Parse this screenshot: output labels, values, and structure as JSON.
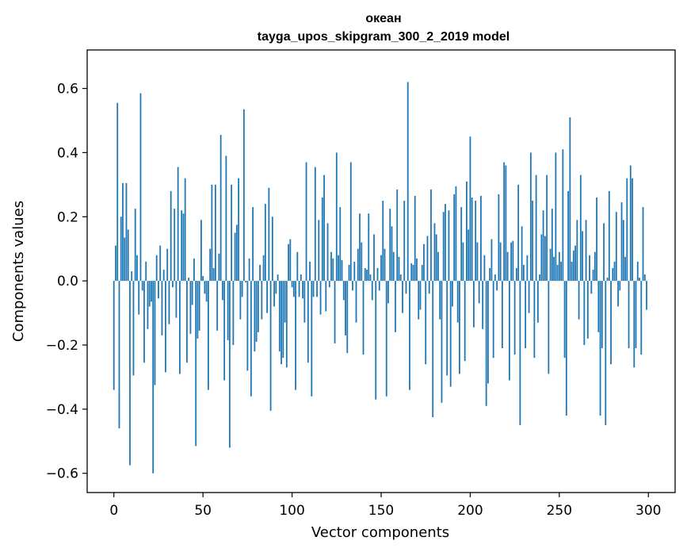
{
  "chart_data": {
    "type": "bar",
    "title": "океан",
    "subtitle": "tayga_upos_skipgram_300_2_2019 model",
    "xlabel": "Vector components",
    "ylabel": "Components values",
    "xlim": [
      -15,
      315
    ],
    "ylim": [
      -0.66,
      0.72
    ],
    "xticks": [
      0,
      50,
      100,
      150,
      200,
      250,
      300
    ],
    "xtick_labels": [
      "0",
      "50",
      "100",
      "150",
      "200",
      "250",
      "300"
    ],
    "yticks": [
      -0.6,
      -0.4,
      -0.2,
      0.0,
      0.2,
      0.4,
      0.6
    ],
    "ytick_labels": [
      "−0.6",
      "−0.4",
      "−0.2",
      "0.0",
      "0.2",
      "0.4",
      "0.6"
    ],
    "grid": false,
    "bar_color": "#1f77b4",
    "x": [
      0,
      1,
      2,
      3,
      4,
      5,
      6,
      7,
      8,
      9,
      10,
      11,
      12,
      13,
      14,
      15,
      16,
      17,
      18,
      19,
      20,
      21,
      22,
      23,
      24,
      25,
      26,
      27,
      28,
      29,
      30,
      31,
      32,
      33,
      34,
      35,
      36,
      37,
      38,
      39,
      40,
      41,
      42,
      43,
      44,
      45,
      46,
      47,
      48,
      49,
      50,
      51,
      52,
      53,
      54,
      55,
      56,
      57,
      58,
      59,
      60,
      61,
      62,
      63,
      64,
      65,
      66,
      67,
      68,
      69,
      70,
      71,
      72,
      73,
      74,
      75,
      76,
      77,
      78,
      79,
      80,
      81,
      82,
      83,
      84,
      85,
      86,
      87,
      88,
      89,
      90,
      91,
      92,
      93,
      94,
      95,
      96,
      97,
      98,
      99,
      100,
      101,
      102,
      103,
      104,
      105,
      106,
      107,
      108,
      109,
      110,
      111,
      112,
      113,
      114,
      115,
      116,
      117,
      118,
      119,
      120,
      121,
      122,
      123,
      124,
      125,
      126,
      127,
      128,
      129,
      130,
      131,
      132,
      133,
      134,
      135,
      136,
      137,
      138,
      139,
      140,
      141,
      142,
      143,
      144,
      145,
      146,
      147,
      148,
      149,
      150,
      151,
      152,
      153,
      154,
      155,
      156,
      157,
      158,
      159,
      160,
      161,
      162,
      163,
      164,
      165,
      166,
      167,
      168,
      169,
      170,
      171,
      172,
      173,
      174,
      175,
      176,
      177,
      178,
      179,
      180,
      181,
      182,
      183,
      184,
      185,
      186,
      187,
      188,
      189,
      190,
      191,
      192,
      193,
      194,
      195,
      196,
      197,
      198,
      199,
      200,
      201,
      202,
      203,
      204,
      205,
      206,
      207,
      208,
      209,
      210,
      211,
      212,
      213,
      214,
      215,
      216,
      217,
      218,
      219,
      220,
      221,
      222,
      223,
      224,
      225,
      226,
      227,
      228,
      229,
      230,
      231,
      232,
      233,
      234,
      235,
      236,
      237,
      238,
      239,
      240,
      241,
      242,
      243,
      244,
      245,
      246,
      247,
      248,
      249,
      250,
      251,
      252,
      253,
      254,
      255,
      256,
      257,
      258,
      259,
      260,
      261,
      262,
      263,
      264,
      265,
      266,
      267,
      268,
      269,
      270,
      271,
      272,
      273,
      274,
      275,
      276,
      277,
      278,
      279,
      280,
      281,
      282,
      283,
      284,
      285,
      286,
      287,
      288,
      289,
      290,
      291,
      292,
      293,
      294,
      295,
      296,
      297,
      298,
      299
    ],
    "values": [
      -0.34,
      0.11,
      0.555,
      -0.46,
      0.2,
      0.305,
      0.135,
      0.305,
      0.16,
      -0.575,
      0.03,
      -0.295,
      0.225,
      0.08,
      -0.105,
      0.585,
      -0.03,
      -0.255,
      0.06,
      -0.15,
      -0.08,
      -0.065,
      -0.6,
      -0.325,
      0.08,
      -0.055,
      0.11,
      -0.17,
      0.035,
      -0.285,
      0.1,
      -0.135,
      0.28,
      -0.02,
      0.225,
      -0.115,
      0.355,
      -0.29,
      0.22,
      0.21,
      0.32,
      -0.255,
      0.01,
      -0.165,
      -0.075,
      0.07,
      -0.515,
      -0.18,
      -0.155,
      0.19,
      0.015,
      -0.04,
      -0.065,
      -0.34,
      0.1,
      0.3,
      0.04,
      0.3,
      -0.155,
      0.085,
      0.455,
      -0.06,
      -0.31,
      0.39,
      -0.185,
      -0.52,
      0.3,
      -0.2,
      0.15,
      0.175,
      0.32,
      -0.12,
      -0.05,
      0.535,
      -0.005,
      -0.28,
      0.07,
      -0.36,
      0.23,
      -0.22,
      -0.19,
      -0.16,
      0.05,
      -0.12,
      0.08,
      0.24,
      -0.1,
      0.29,
      -0.405,
      0.2,
      -0.08,
      -0.04,
      0.02,
      -0.22,
      -0.26,
      -0.24,
      -0.13,
      -0.27,
      0.115,
      0.13,
      -0.02,
      -0.05,
      -0.34,
      0.09,
      -0.05,
      0.02,
      -0.055,
      -0.13,
      0.37,
      -0.255,
      0.06,
      -0.36,
      -0.05,
      0.355,
      -0.05,
      0.19,
      -0.105,
      0.26,
      0.33,
      -0.095,
      0.18,
      -0.02,
      0.09,
      0.07,
      -0.195,
      0.4,
      0.08,
      0.23,
      0.065,
      -0.06,
      -0.17,
      -0.225,
      0.05,
      0.37,
      -0.03,
      0.06,
      -0.13,
      0.1,
      0.21,
      0.12,
      -0.23,
      0.04,
      0.035,
      0.21,
      0.02,
      -0.06,
      0.145,
      -0.37,
      0.04,
      -0.03,
      0.08,
      0.25,
      0.1,
      -0.36,
      -0.07,
      0.225,
      0.17,
      0.09,
      -0.16,
      0.285,
      0.075,
      0.02,
      -0.1,
      0.25,
      -0.04,
      0.62,
      -0.34,
      0.055,
      0.05,
      0.265,
      0.07,
      -0.12,
      -0.09,
      0.05,
      0.115,
      -0.26,
      0.14,
      -0.04,
      0.285,
      -0.425,
      0.18,
      0.145,
      0.09,
      -0.12,
      -0.38,
      0.215,
      0.24,
      -0.295,
      0.22,
      -0.33,
      -0.08,
      0.27,
      0.295,
      -0.13,
      -0.29,
      0.23,
      0.12,
      -0.25,
      0.31,
      0.16,
      0.45,
      0.26,
      -0.145,
      0.25,
      0.12,
      -0.07,
      0.265,
      -0.15,
      0.08,
      -0.39,
      -0.32,
      0.04,
      0.13,
      -0.24,
      0.02,
      -0.03,
      0.27,
      0.12,
      -0.21,
      0.37,
      0.36,
      0.09,
      -0.31,
      0.12,
      0.125,
      -0.23,
      0.04,
      0.3,
      -0.45,
      0.17,
      0.05,
      -0.21,
      0.08,
      -0.1,
      0.4,
      0.25,
      -0.24,
      0.33,
      -0.13,
      0.02,
      0.145,
      0.22,
      0.14,
      0.33,
      -0.29,
      0.1,
      0.225,
      0.075,
      0.4,
      0.05,
      0.09,
      0.06,
      0.41,
      -0.24,
      -0.42,
      0.28,
      0.51,
      0.06,
      0.095,
      0.11,
      0.19,
      -0.12,
      0.33,
      0.155,
      -0.2,
      0.19,
      -0.18,
      0.08,
      -0.04,
      0.035,
      0.09,
      0.26,
      -0.16,
      -0.42,
      -0.21,
      0.18,
      -0.45,
      0.01,
      0.28,
      -0.26,
      0.04,
      0.06,
      0.215,
      -0.08,
      -0.03,
      0.245,
      0.19,
      0.075,
      0.32,
      -0.21,
      0.36,
      0.32,
      -0.27,
      -0.21,
      0.06,
      0.01,
      -0.23,
      0.23,
      0.02,
      -0.09
    ]
  }
}
